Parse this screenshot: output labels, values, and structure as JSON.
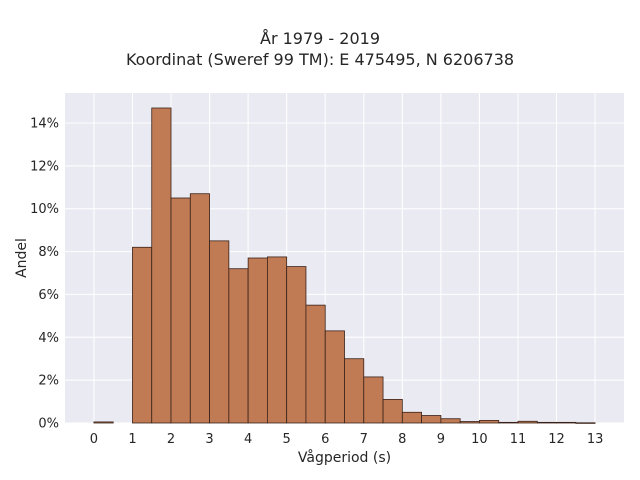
{
  "chart_data": {
    "type": "bar",
    "title_line1": "År 1979 - 2019",
    "title_line2": "Koordinat (Sweref 99 TM): E 475495, N 6206738",
    "xlabel": "Vågperiod (s)",
    "ylabel": "Andel",
    "xlim": [
      -0.75,
      13.75
    ],
    "ylim": [
      0,
      15.4
    ],
    "x_ticks": [
      "0",
      "1",
      "2",
      "3",
      "4",
      "5",
      "6",
      "7",
      "8",
      "9",
      "10",
      "11",
      "12",
      "13"
    ],
    "y_ticks": [
      "0%",
      "2%",
      "4%",
      "6%",
      "8%",
      "10%",
      "12%",
      "14%"
    ],
    "y_tick_values": [
      0,
      2,
      4,
      6,
      8,
      10,
      12,
      14
    ],
    "bin_width": 0.5,
    "bins": [
      {
        "start": 0.0,
        "value": 0.05
      },
      {
        "start": 1.0,
        "value": 8.2
      },
      {
        "start": 1.5,
        "value": 14.7
      },
      {
        "start": 2.0,
        "value": 10.5
      },
      {
        "start": 2.5,
        "value": 10.7
      },
      {
        "start": 3.0,
        "value": 8.5
      },
      {
        "start": 3.5,
        "value": 7.2
      },
      {
        "start": 4.0,
        "value": 7.7
      },
      {
        "start": 4.5,
        "value": 7.75
      },
      {
        "start": 5.0,
        "value": 7.3
      },
      {
        "start": 5.5,
        "value": 5.5
      },
      {
        "start": 6.0,
        "value": 4.3
      },
      {
        "start": 6.5,
        "value": 3.0
      },
      {
        "start": 7.0,
        "value": 2.15
      },
      {
        "start": 7.5,
        "value": 1.1
      },
      {
        "start": 8.0,
        "value": 0.5
      },
      {
        "start": 8.5,
        "value": 0.35
      },
      {
        "start": 9.0,
        "value": 0.2
      },
      {
        "start": 9.5,
        "value": 0.07
      },
      {
        "start": 10.0,
        "value": 0.12
      },
      {
        "start": 10.5,
        "value": 0.03
      },
      {
        "start": 11.0,
        "value": 0.08
      },
      {
        "start": 11.5,
        "value": 0.03
      },
      {
        "start": 12.0,
        "value": 0.03
      },
      {
        "start": 12.5,
        "value": 0.01
      }
    ],
    "grid": true,
    "colors": {
      "bar_fill": "#c07b55",
      "bar_edge": "#3a2218",
      "plot_background": "#eaeaf2",
      "grid": "#ffffff"
    }
  }
}
